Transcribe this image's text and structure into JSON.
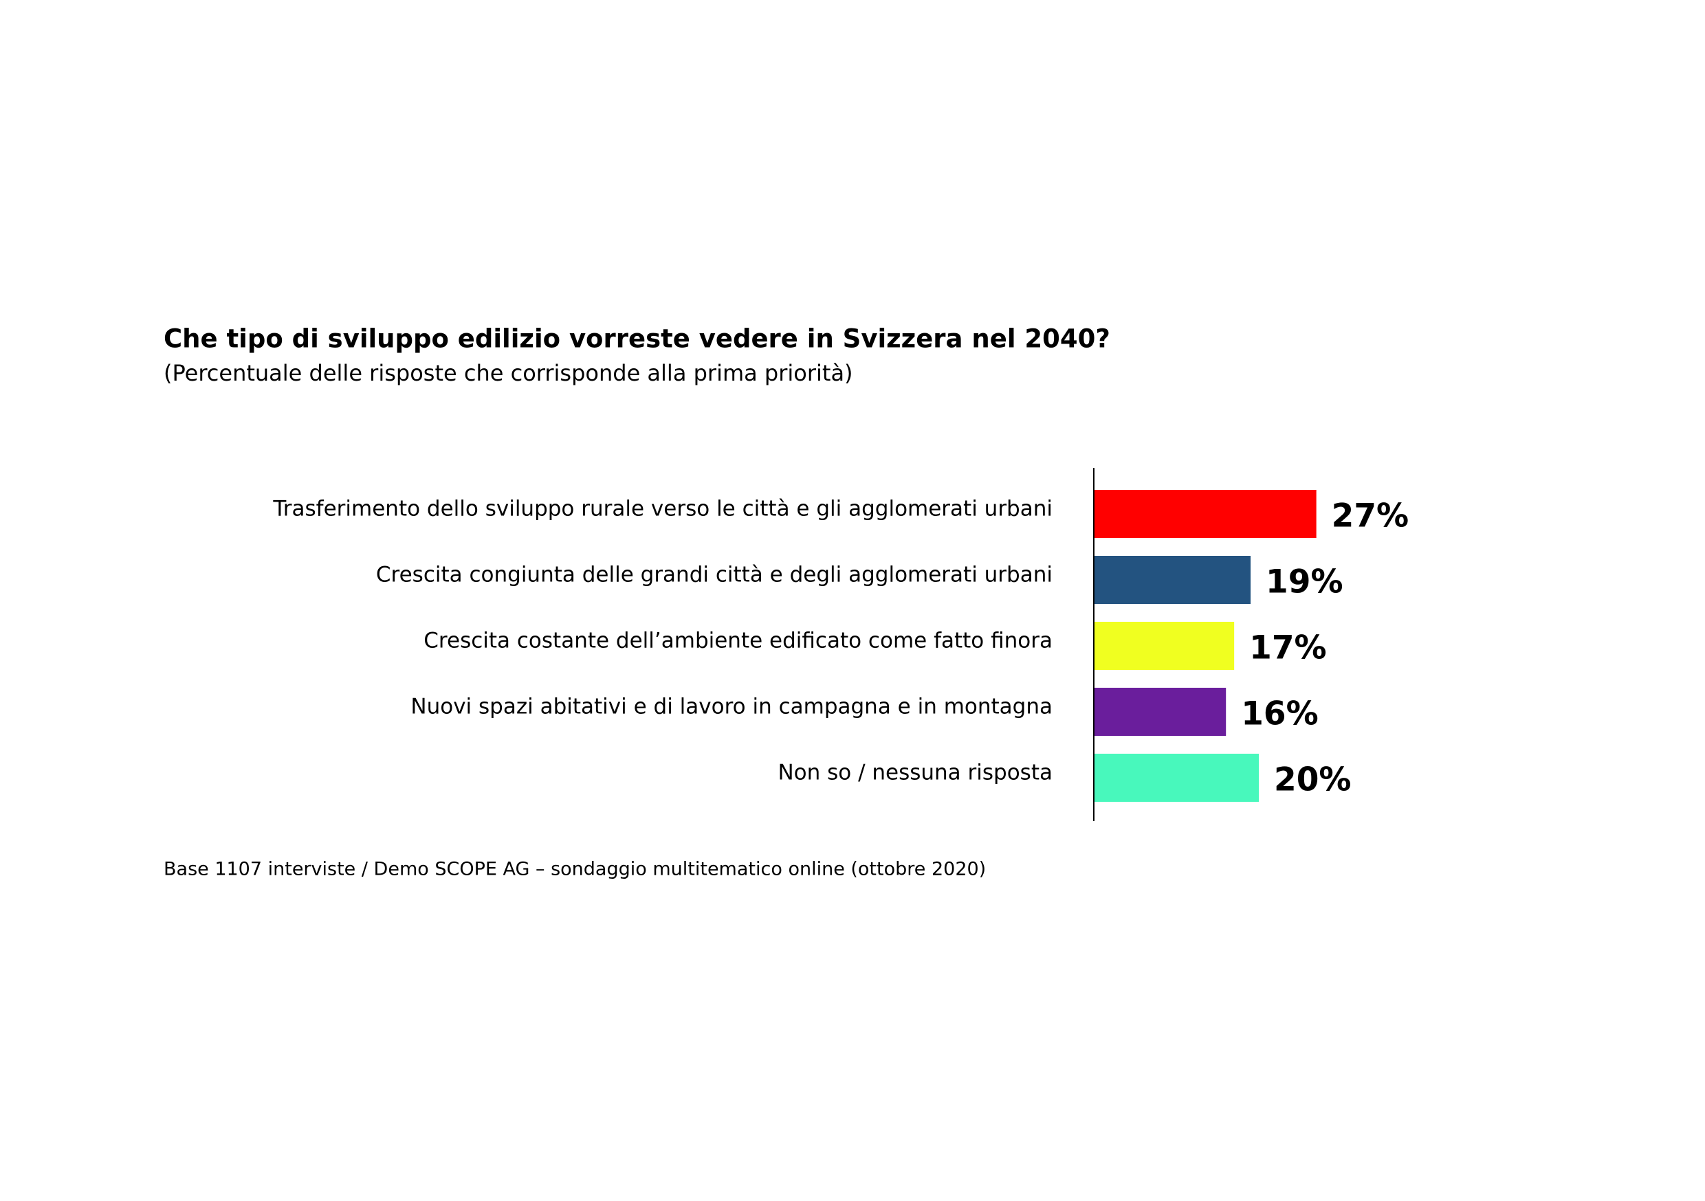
{
  "chart_data": {
    "type": "bar",
    "orientation": "horizontal",
    "title": "Che tipo di sviluppo edilizio vorreste vedere in Svizzera nel 2040?",
    "subtitle": "(Percentuale delle risposte che corrisponde alla prima priorità)",
    "categories": [
      "Trasferimento dello sviluppo rurale verso le città e gli agglomerati urbani",
      "Crescita congiunta delle grandi città e degli agglomerati urbani",
      "Crescita costante dell’ambiente edificato come fatto finora",
      "Nuovi spazi abitativi e di lavoro in campagna e in montagna",
      "Non so / nessuna risposta"
    ],
    "values": [
      27,
      19,
      17,
      16,
      20
    ],
    "value_labels": [
      "27%",
      "19%",
      "17%",
      "16%",
      "20%"
    ],
    "colors": [
      "#ff0000",
      "#235380",
      "#f0ff20",
      "#6a1e9c",
      "#48f8bc"
    ],
    "note": "Base 1107 interviste / Demo SCOPE AG – sondaggio multitematico online (ottobre 2020)"
  }
}
